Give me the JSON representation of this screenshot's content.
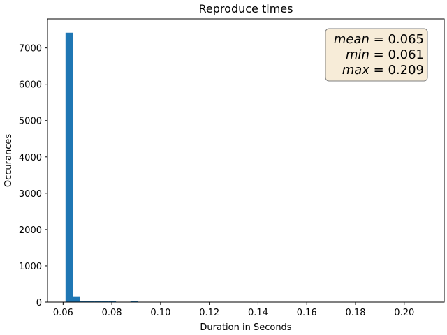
{
  "chart_data": {
    "type": "bar",
    "title": "Reproduce times",
    "xlabel": "Duration in Seconds",
    "ylabel": "Occurances",
    "xlim": [
      0.0536,
      0.2164
    ],
    "ylim": [
      0,
      7800
    ],
    "xticks": [
      0.06,
      0.08,
      0.1,
      0.12,
      0.14,
      0.16,
      0.18,
      0.2
    ],
    "xtick_labels": [
      "0.06",
      "0.08",
      "0.10",
      "0.12",
      "0.14",
      "0.16",
      "0.18",
      "0.20"
    ],
    "yticks": [
      0,
      1000,
      2000,
      3000,
      4000,
      5000,
      6000,
      7000
    ],
    "ytick_labels": [
      "0",
      "1000",
      "2000",
      "3000",
      "4000",
      "5000",
      "6000",
      "7000"
    ],
    "bin_start": 0.061,
    "bin_width": 0.00296,
    "values": [
      7420,
      160,
      30,
      25,
      25,
      20,
      20,
      5,
      0,
      20,
      5,
      3,
      3,
      3,
      3,
      3,
      3,
      3,
      3,
      3,
      3,
      3,
      3,
      3,
      3,
      3,
      3,
      3,
      2,
      2,
      2,
      0,
      8,
      0,
      0,
      8,
      0,
      8,
      0,
      0,
      8,
      0,
      0,
      0,
      0,
      0,
      0,
      0,
      0,
      8
    ],
    "bar_color": "#1f77b4",
    "grid": false,
    "stats_box": {
      "lines": [
        {
          "name": "mean",
          "value": "0.065"
        },
        {
          "name": "min",
          "value": "0.061"
        },
        {
          "name": "max",
          "value": "0.209"
        }
      ],
      "placement": "top-right",
      "facecolor": "#f7ecd8",
      "edgecolor": "#7f7f7f"
    }
  }
}
